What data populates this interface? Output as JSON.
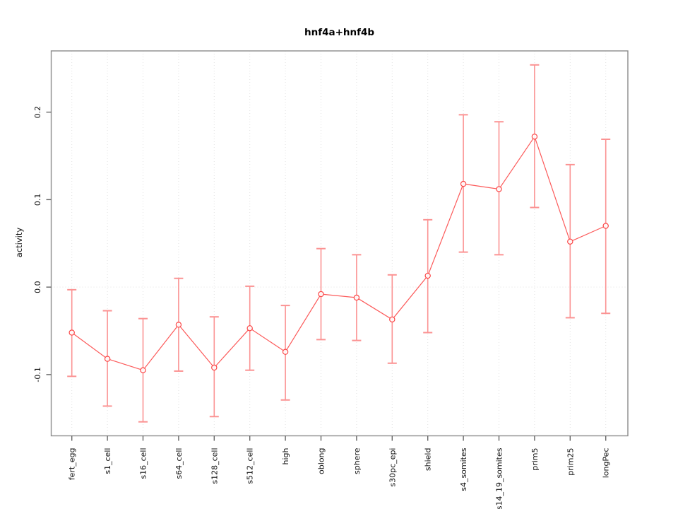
{
  "chart_data": {
    "type": "line",
    "title": "hnf4a+hnf4b",
    "ylabel": "activity",
    "xlabel": "",
    "categories": [
      "fert_egg",
      "s1_cell",
      "s16_cell",
      "s64_cell",
      "s128_cell",
      "s512_cell",
      "high",
      "oblong",
      "sphere",
      "s30pc_epi",
      "shield",
      "s4_somites",
      "s14_19_somites",
      "prim5",
      "prim25",
      "longPec"
    ],
    "series": [
      {
        "name": "hnf4a+hnf4b activity",
        "values": [
          -0.052,
          -0.082,
          -0.095,
          -0.043,
          -0.092,
          -0.047,
          -0.074,
          -0.008,
          -0.012,
          -0.037,
          0.013,
          0.118,
          0.112,
          0.172,
          0.052,
          0.07
        ],
        "error_high": [
          -0.003,
          -0.027,
          -0.036,
          0.01,
          -0.034,
          0.001,
          -0.021,
          0.044,
          0.037,
          0.014,
          0.077,
          0.197,
          0.189,
          0.254,
          0.14,
          0.169
        ],
        "error_low": [
          -0.102,
          -0.136,
          -0.154,
          -0.096,
          -0.148,
          -0.095,
          -0.129,
          -0.06,
          -0.061,
          -0.087,
          -0.052,
          0.04,
          0.037,
          0.091,
          -0.035,
          -0.03
        ]
      }
    ],
    "y_ticks": [
      -0.1,
      0.0,
      0.1,
      0.2
    ],
    "y_tick_labels": [
      "-0.1",
      "0.0",
      "0.1",
      "0.2"
    ],
    "ylim": [
      -0.17,
      0.27
    ],
    "grid": "dotted light-gray vertical line per category; dotted horizontal line at y=0",
    "legend": "none",
    "colors": {
      "line": "#fc5a5a",
      "error_bar": "#fb9393",
      "point_stroke": "#fb4646",
      "box": "#8c8c8c",
      "tick": "#666666",
      "grid": "#e1e1e1",
      "text": "#111111",
      "background": "#ffffff"
    }
  }
}
